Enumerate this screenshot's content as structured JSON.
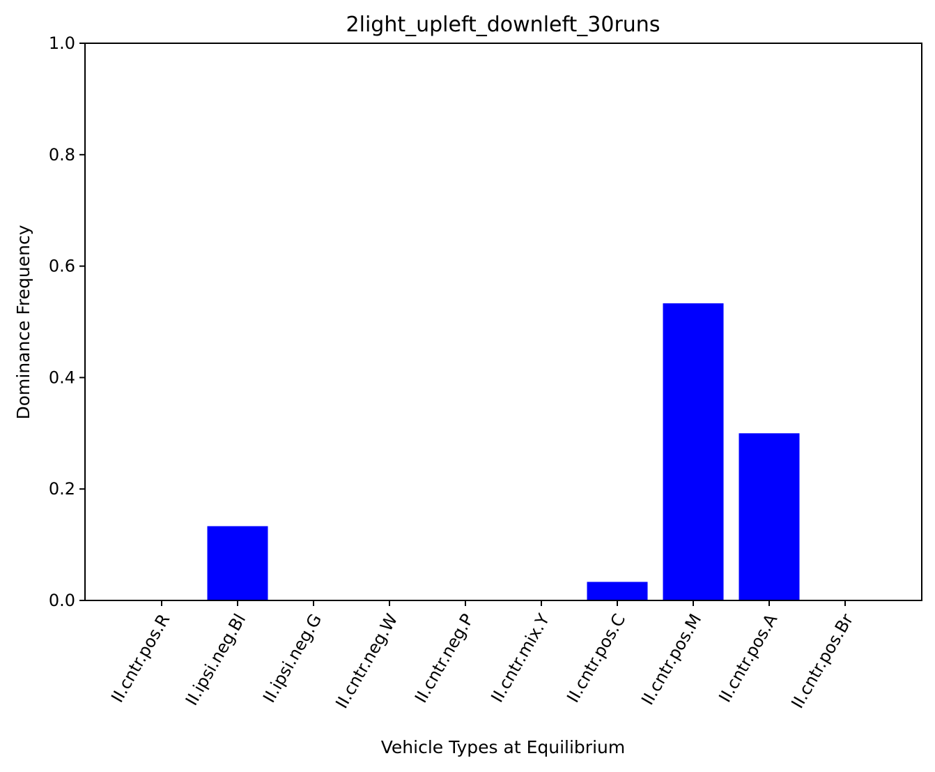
{
  "chart_data": {
    "type": "bar",
    "title": "2light_upleft_downleft_30runs",
    "xlabel": "Vehicle Types at Equilibrium",
    "ylabel": "Dominance Frequency",
    "categories": [
      "II.cntr.pos.R",
      "II.ipsi.neg.Bl",
      "II.ipsi.neg.G",
      "II.cntr.neg.W",
      "II.cntr.neg.P",
      "II.cntr.mix.Y",
      "II.cntr.pos.C",
      "II.cntr.pos.M",
      "II.cntr.pos.A",
      "II.cntr.pos.Br"
    ],
    "values": [
      0.0,
      0.1333,
      0.0,
      0.0,
      0.0,
      0.0,
      0.0333,
      0.5333,
      0.3,
      0.0
    ],
    "ylim": [
      0,
      1.0
    ],
    "yticks": [
      "0.0",
      "0.2",
      "0.4",
      "0.6",
      "0.8",
      "1.0"
    ],
    "bar_color": "#0000ff",
    "grid": false,
    "legend": "none"
  }
}
